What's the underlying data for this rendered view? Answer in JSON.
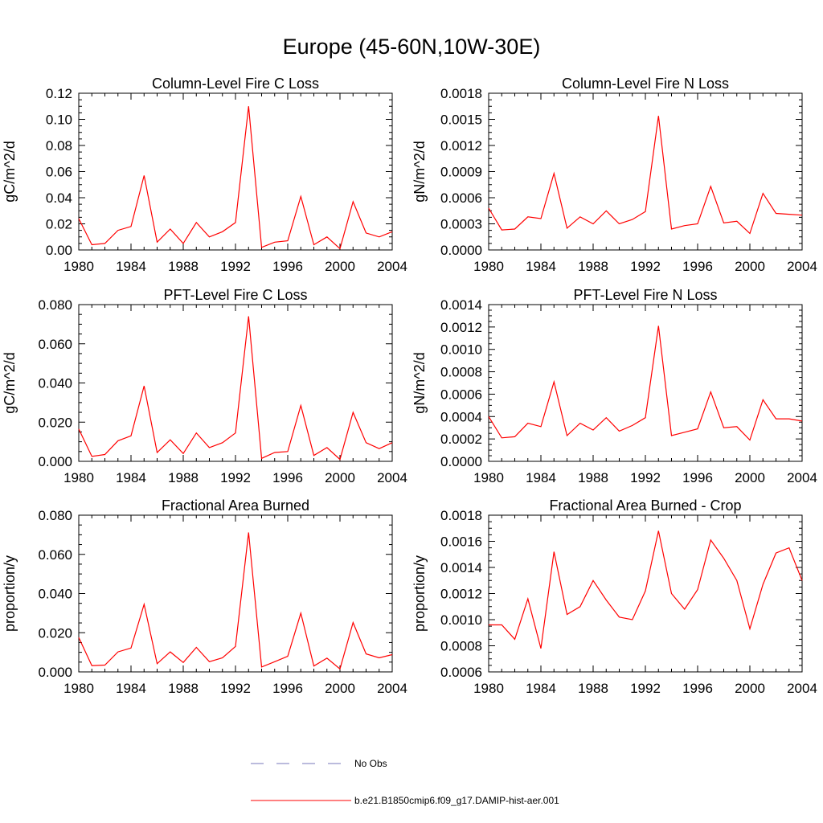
{
  "figure": {
    "title": "Europe (45-60N,10W-30E)",
    "line_color": "#ff0000",
    "obs_color": "#7777bb"
  },
  "legend": {
    "items": [
      {
        "label": "No Obs",
        "style": "dashed",
        "color": "#7777bb"
      },
      {
        "label": "b.e21.B1850cmip6.f09_g17.DAMIP-hist-aer.001",
        "style": "solid",
        "color": "#ff0000"
      }
    ]
  },
  "chart_data": [
    {
      "type": "line",
      "title": "Column-Level Fire C Loss",
      "ylabel": "gC/m^2/d",
      "xlim": [
        1980,
        2004
      ],
      "ylim": [
        0,
        0.12
      ],
      "xticks": [
        1980,
        1984,
        1988,
        1992,
        1996,
        2000,
        2004
      ],
      "xtick_labels": [
        "1980",
        "1984",
        "1988",
        "1992",
        "1996",
        "2000",
        "2004"
      ],
      "yticks": [
        0,
        0.02,
        0.04,
        0.06,
        0.08,
        0.1,
        0.12
      ],
      "ytick_labels": [
        "0.00",
        "0.02",
        "0.04",
        "0.06",
        "0.08",
        "0.10",
        "0.12"
      ],
      "x": [
        1980,
        1981,
        1982,
        1983,
        1984,
        1985,
        1986,
        1987,
        1988,
        1989,
        1990,
        1991,
        1992,
        1993,
        1994,
        1995,
        1996,
        1997,
        1998,
        1999,
        2000,
        2001,
        2002,
        2003,
        2004
      ],
      "series": [
        {
          "values": [
            0.024,
            0.004,
            0.005,
            0.015,
            0.018,
            0.057,
            0.006,
            0.016,
            0.005,
            0.021,
            0.01,
            0.014,
            0.021,
            0.11,
            0.002,
            0.006,
            0.007,
            0.041,
            0.004,
            0.01,
            0.001,
            0.037,
            0.013,
            0.01,
            0.014
          ]
        }
      ]
    },
    {
      "type": "line",
      "title": "Column-Level Fire N Loss",
      "ylabel": "gN/m^2/d",
      "xlim": [
        1980,
        2004
      ],
      "ylim": [
        0,
        0.0018
      ],
      "xticks": [
        1980,
        1984,
        1988,
        1992,
        1996,
        2000,
        2004
      ],
      "xtick_labels": [
        "1980",
        "1984",
        "1988",
        "1992",
        "1996",
        "2000",
        "2004"
      ],
      "yticks": [
        0,
        0.0003,
        0.0006,
        0.0009,
        0.0012,
        0.0015,
        0.0018
      ],
      "ytick_labels": [
        "0.0000",
        "0.0003",
        "0.0006",
        "0.0009",
        "0.0012",
        "0.0015",
        "0.0018"
      ],
      "x": [
        1980,
        1981,
        1982,
        1983,
        1984,
        1985,
        1986,
        1987,
        1988,
        1989,
        1990,
        1991,
        1992,
        1993,
        1994,
        1995,
        1996,
        1997,
        1998,
        1999,
        2000,
        2001,
        2002,
        2003,
        2004
      ],
      "series": [
        {
          "values": [
            0.00048,
            0.00023,
            0.00024,
            0.00038,
            0.00036,
            0.00088,
            0.00025,
            0.00038,
            0.0003,
            0.00045,
            0.0003,
            0.00035,
            0.00044,
            0.00154,
            0.00024,
            0.00028,
            0.0003,
            0.00073,
            0.00031,
            0.00033,
            0.00019,
            0.00065,
            0.00042,
            0.00041,
            0.0004
          ]
        }
      ]
    },
    {
      "type": "line",
      "title": "PFT-Level Fire C Loss",
      "ylabel": "gC/m^2/d",
      "xlim": [
        1980,
        2004
      ],
      "ylim": [
        0,
        0.08
      ],
      "xticks": [
        1980,
        1984,
        1988,
        1992,
        1996,
        2000,
        2004
      ],
      "xtick_labels": [
        "1980",
        "1984",
        "1988",
        "1992",
        "1996",
        "2000",
        "2004"
      ],
      "yticks": [
        0,
        0.02,
        0.04,
        0.06,
        0.08
      ],
      "ytick_labels": [
        "0.000",
        "0.020",
        "0.040",
        "0.060",
        "0.080"
      ],
      "x": [
        1980,
        1981,
        1982,
        1983,
        1984,
        1985,
        1986,
        1987,
        1988,
        1989,
        1990,
        1991,
        1992,
        1993,
        1994,
        1995,
        1996,
        1997,
        1998,
        1999,
        2000,
        2001,
        2002,
        2003,
        2004
      ],
      "series": [
        {
          "values": [
            0.0165,
            0.0025,
            0.0035,
            0.0105,
            0.013,
            0.0385,
            0.0045,
            0.011,
            0.004,
            0.0145,
            0.007,
            0.0095,
            0.0145,
            0.074,
            0.0015,
            0.0045,
            0.005,
            0.0285,
            0.003,
            0.007,
            0.001,
            0.025,
            0.0095,
            0.0065,
            0.0095
          ]
        }
      ]
    },
    {
      "type": "line",
      "title": "PFT-Level Fire N Loss",
      "ylabel": "gN/m^2/d",
      "xlim": [
        1980,
        2004
      ],
      "ylim": [
        0,
        0.0014
      ],
      "xticks": [
        1980,
        1984,
        1988,
        1992,
        1996,
        2000,
        2004
      ],
      "xtick_labels": [
        "1980",
        "1984",
        "1988",
        "1992",
        "1996",
        "2000",
        "2004"
      ],
      "yticks": [
        0,
        0.0002,
        0.0004,
        0.0006,
        0.0008,
        0.001,
        0.0012,
        0.0014
      ],
      "ytick_labels": [
        "0.0000",
        "0.0002",
        "0.0004",
        "0.0006",
        "0.0008",
        "0.0010",
        "0.0012",
        "0.0014"
      ],
      "x": [
        1980,
        1981,
        1982,
        1983,
        1984,
        1985,
        1986,
        1987,
        1988,
        1989,
        1990,
        1991,
        1992,
        1993,
        1994,
        1995,
        1996,
        1997,
        1998,
        1999,
        2000,
        2001,
        2002,
        2003,
        2004
      ],
      "series": [
        {
          "values": [
            0.0004,
            0.00021,
            0.00022,
            0.00034,
            0.00031,
            0.00071,
            0.00023,
            0.00034,
            0.00028,
            0.00039,
            0.00027,
            0.00032,
            0.00039,
            0.00121,
            0.00023,
            0.00026,
            0.00029,
            0.00062,
            0.0003,
            0.00031,
            0.00019,
            0.00055,
            0.00038,
            0.00038,
            0.00036
          ]
        }
      ]
    },
    {
      "type": "line",
      "title": "Fractional Area Burned",
      "ylabel": "proportion/y",
      "xlim": [
        1980,
        2004
      ],
      "ylim": [
        0,
        0.08
      ],
      "xticks": [
        1980,
        1984,
        1988,
        1992,
        1996,
        2000,
        2004
      ],
      "xtick_labels": [
        "1980",
        "1984",
        "1988",
        "1992",
        "1996",
        "2000",
        "2004"
      ],
      "yticks": [
        0,
        0.02,
        0.04,
        0.06,
        0.08
      ],
      "ytick_labels": [
        "0.000",
        "0.020",
        "0.040",
        "0.060",
        "0.080"
      ],
      "x": [
        1980,
        1981,
        1982,
        1983,
        1984,
        1985,
        1986,
        1987,
        1988,
        1989,
        1990,
        1991,
        1992,
        1993,
        1994,
        1995,
        1996,
        1997,
        1998,
        1999,
        2000,
        2001,
        2002,
        2003,
        2004
      ],
      "series": [
        {
          "values": [
            0.0175,
            0.0032,
            0.0035,
            0.0102,
            0.0122,
            0.0345,
            0.0042,
            0.0102,
            0.0048,
            0.0125,
            0.0052,
            0.0072,
            0.013,
            0.0712,
            0.0025,
            0.0052,
            0.008,
            0.03,
            0.003,
            0.007,
            0.0015,
            0.0252,
            0.0092,
            0.0072,
            0.0088
          ]
        }
      ]
    },
    {
      "type": "line",
      "title": "Fractional Area Burned - Crop",
      "ylabel": "proportion/y",
      "xlim": [
        1980,
        2004
      ],
      "ylim": [
        0.0006,
        0.0018
      ],
      "xticks": [
        1980,
        1984,
        1988,
        1992,
        1996,
        2000,
        2004
      ],
      "xtick_labels": [
        "1980",
        "1984",
        "1988",
        "1992",
        "1996",
        "2000",
        "2004"
      ],
      "yticks": [
        0.0006,
        0.0008,
        0.001,
        0.0012,
        0.0014,
        0.0016,
        0.0018
      ],
      "ytick_labels": [
        "0.0006",
        "0.0008",
        "0.0010",
        "0.0012",
        "0.0014",
        "0.0016",
        "0.0018"
      ],
      "x": [
        1980,
        1981,
        1982,
        1983,
        1984,
        1985,
        1986,
        1987,
        1988,
        1989,
        1990,
        1991,
        1992,
        1993,
        1994,
        1995,
        1996,
        1997,
        1998,
        1999,
        2000,
        2001,
        2002,
        2003,
        2004
      ],
      "series": [
        {
          "values": [
            0.00096,
            0.00096,
            0.00085,
            0.00116,
            0.00078,
            0.00152,
            0.00104,
            0.0011,
            0.0013,
            0.00115,
            0.00102,
            0.001,
            0.00122,
            0.00168,
            0.0012,
            0.00108,
            0.00123,
            0.00161,
            0.00147,
            0.0013,
            0.00093,
            0.00127,
            0.00151,
            0.00155,
            0.0013
          ]
        }
      ]
    }
  ]
}
